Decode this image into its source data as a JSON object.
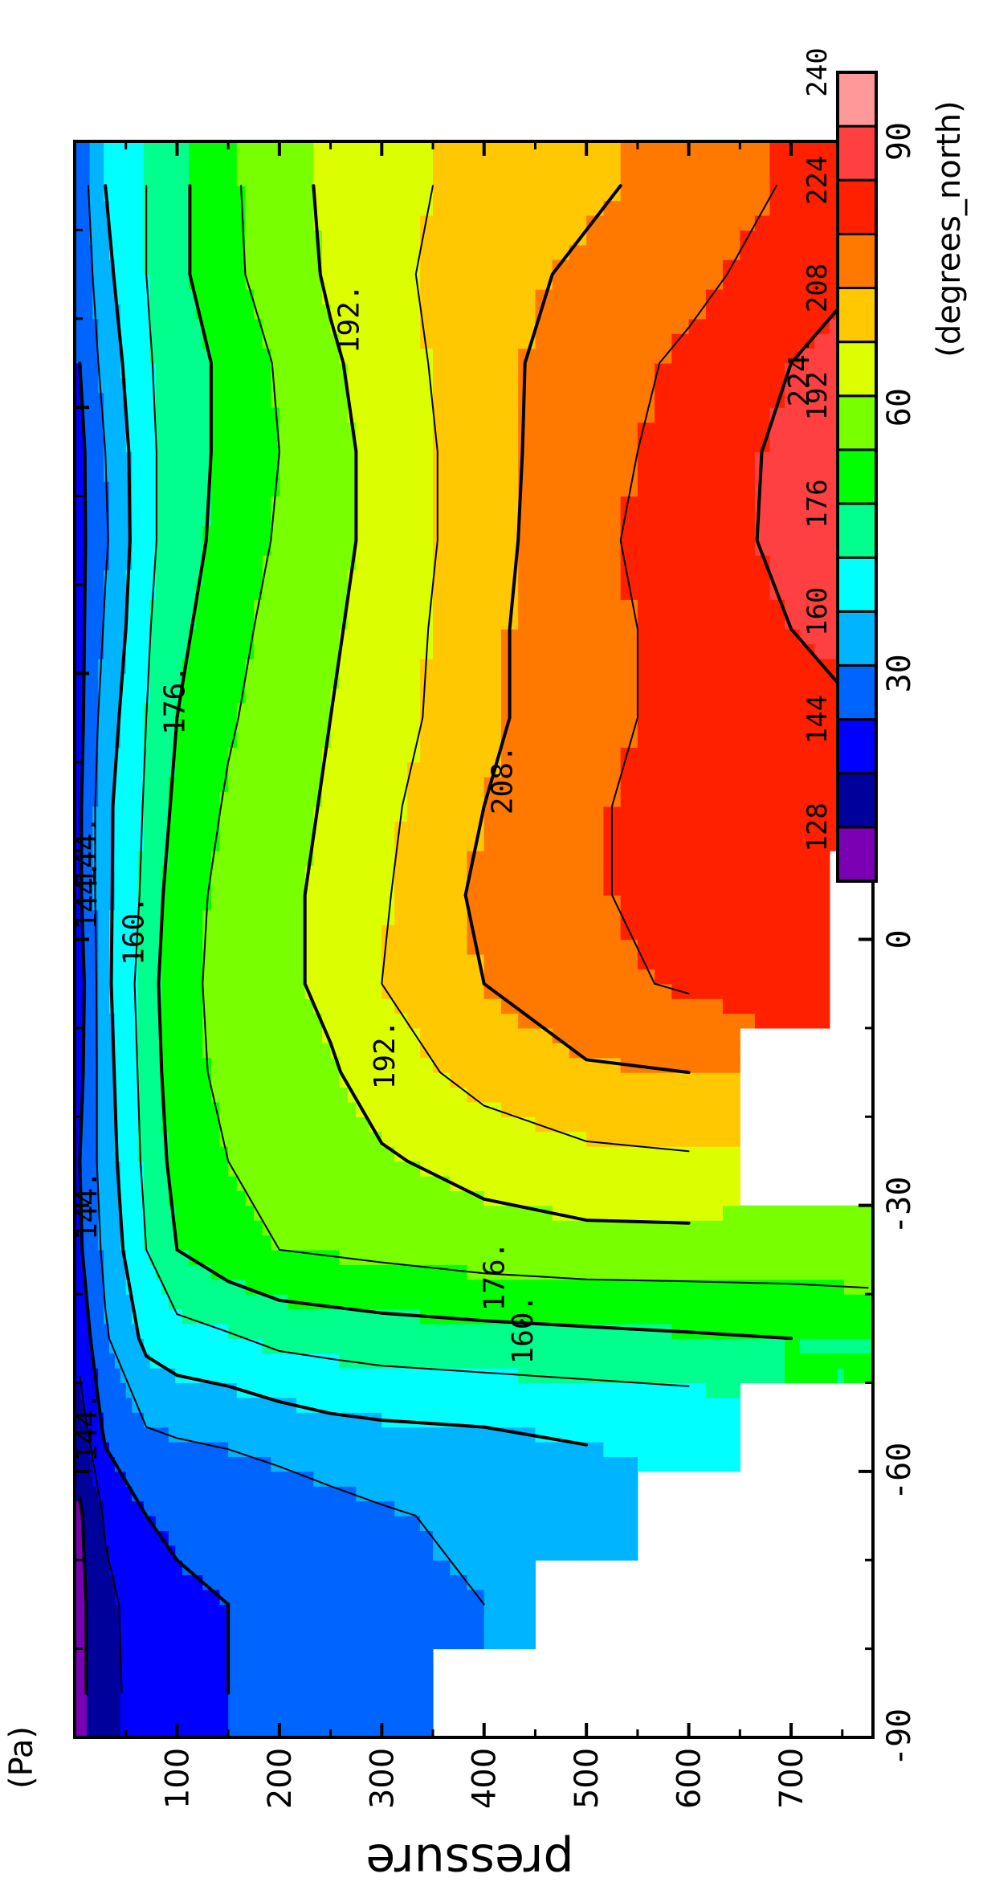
{
  "chart_data": {
    "type": "heatmap",
    "orientation": "rotated-90-clockwise",
    "title": "",
    "xlabel": "pressure",
    "xunit": "(Pa)",
    "ylabel": "",
    "yunit": "(degrees_north)",
    "pressure_range": [
      0,
      780
    ],
    "latitude_range": [
      -90,
      90
    ],
    "pressure_ticks": [
      "100",
      "200",
      "300",
      "400",
      "500",
      "600",
      "700"
    ],
    "latitude_ticks": [
      "-90",
      "-60",
      "-30",
      "0",
      "30",
      "60",
      "90"
    ],
    "colorbar": {
      "colors": [
        "#7b00b4",
        "#00009b",
        "#0000ff",
        "#0064ff",
        "#00b4ff",
        "#00ffff",
        "#00ff8c",
        "#00ff00",
        "#78ff00",
        "#dcff00",
        "#ffc800",
        "#ff7800",
        "#ff2000",
        "#ff4040",
        "#ff9999"
      ],
      "ticks": [
        "128",
        "144",
        "160",
        "176",
        "192",
        "208",
        "224",
        "240"
      ]
    },
    "contour_labels": [
      "144.",
      "144.",
      "144.",
      "144.",
      "160.",
      "160.",
      "176.",
      "176.",
      "192.",
      "192.",
      "208.",
      "224."
    ],
    "latitudes": [
      -85,
      -75,
      -65,
      -55,
      -45,
      -35,
      -25,
      -15,
      -5,
      5,
      15,
      25,
      35,
      45,
      55,
      65,
      75,
      85
    ],
    "pressures": [
      5,
      30,
      70,
      100,
      150,
      200,
      250,
      300,
      400,
      500,
      600,
      700,
      775
    ],
    "temperature": [
      [
        126,
        126,
        127,
        132,
        139,
        143,
        144,
        142,
        141,
        143,
        143,
        142,
        142,
        142,
        142,
        144,
        146,
        148
      ],
      [
        134,
        134,
        137,
        146,
        151,
        154,
        156,
        157,
        158,
        158,
        158,
        156,
        153,
        151,
        152,
        155,
        158,
        160
      ],
      [
        139,
        140,
        144,
        152,
        162,
        168,
        170,
        171,
        172,
        170,
        169,
        168,
        167,
        166,
        166,
        167,
        168,
        168
      ],
      [
        142,
        143,
        145,
        153,
        165,
        176,
        179,
        181,
        182,
        181,
        178,
        176,
        174,
        172,
        172,
        172,
        174,
        174
      ],
      [
        144,
        144,
        146,
        154,
        167,
        181,
        184,
        186,
        186,
        186,
        185,
        183,
        181,
        179,
        178,
        178,
        182,
        182
      ],
      [
        146,
        146,
        147,
        156,
        170,
        184,
        187,
        189,
        190,
        190,
        189,
        188,
        187,
        185,
        184,
        185,
        188,
        190
      ],
      [
        148,
        148,
        149,
        158,
        171,
        185,
        189,
        191,
        194,
        194,
        193,
        192,
        191,
        190,
        190,
        191,
        193,
        193
      ],
      [
        150,
        150,
        151,
        159,
        172,
        186,
        191,
        196,
        200,
        199,
        198,
        196,
        195,
        194,
        194,
        195,
        197,
        197
      ],
      [
        null,
        152,
        154,
        160,
        173,
        188,
        195,
        203,
        208,
        210,
        208,
        206,
        206,
        205,
        205,
        206,
        206,
        203
      ],
      [
        null,
        null,
        156,
        161,
        174,
        189,
        198,
        207,
        214,
        215,
        215,
        214,
        214,
        214,
        213,
        211,
        209,
        207
      ],
      [
        null,
        null,
        null,
        162,
        175,
        189,
        199,
        208,
        217,
        219,
        219,
        218,
        218,
        220,
        219,
        218,
        213,
        210
      ],
      [
        null,
        null,
        null,
        null,
        176,
        189,
        null,
        null,
        219,
        222,
        222,
        222,
        224,
        226,
        226,
        224,
        221,
        217
      ],
      [
        null,
        null,
        null,
        null,
        176,
        190,
        null,
        null,
        null,
        null,
        223,
        224,
        225,
        227,
        227,
        226,
        224,
        220
      ]
    ]
  }
}
